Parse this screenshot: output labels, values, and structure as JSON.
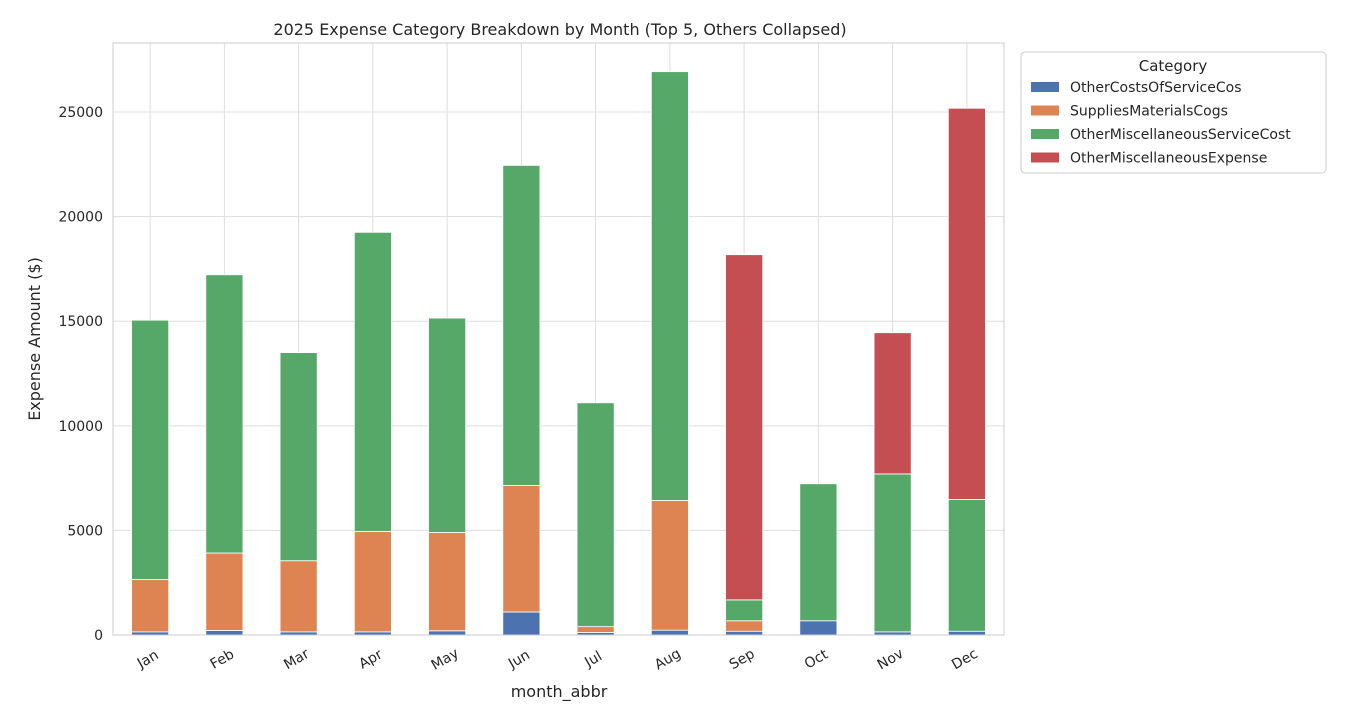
{
  "chart_data": {
    "type": "bar",
    "stacked": true,
    "title": "2025 Expense Category Breakdown by Month (Top 5, Others Collapsed)",
    "xlabel": "month_abbr",
    "ylabel": "Expense Amount ($)",
    "ylim": [
      0,
      28300
    ],
    "yticks": [
      0,
      5000,
      10000,
      15000,
      20000,
      25000
    ],
    "grid": true,
    "legend_placement": "outside-top-right",
    "legend_title": "Category",
    "categories": [
      "Jan",
      "Feb",
      "Mar",
      "Apr",
      "May",
      "Jun",
      "Jul",
      "Aug",
      "Sep",
      "Oct",
      "Nov",
      "Dec"
    ],
    "series": [
      {
        "name": "OtherCostsOfServiceCos",
        "color": "#4c72b0",
        "values": [
          150,
          220,
          150,
          150,
          200,
          1100,
          120,
          230,
          180,
          680,
          150,
          180
        ]
      },
      {
        "name": "SuppliesMaterialsCogs",
        "color": "#dd8452",
        "values": [
          2500,
          3700,
          3400,
          4800,
          4700,
          6050,
          280,
          6200,
          500,
          0,
          0,
          0
        ]
      },
      {
        "name": "OtherMiscellaneousServiceCost",
        "color": "#55a868",
        "values": [
          12400,
          13300,
          9950,
          14300,
          10250,
          15300,
          10700,
          20500,
          1000,
          6550,
          7550,
          6300
        ]
      },
      {
        "name": "OtherMiscellaneousExpense",
        "color": "#c44e52",
        "values": [
          0,
          0,
          0,
          0,
          0,
          0,
          0,
          0,
          16500,
          0,
          6750,
          18700
        ]
      }
    ]
  }
}
